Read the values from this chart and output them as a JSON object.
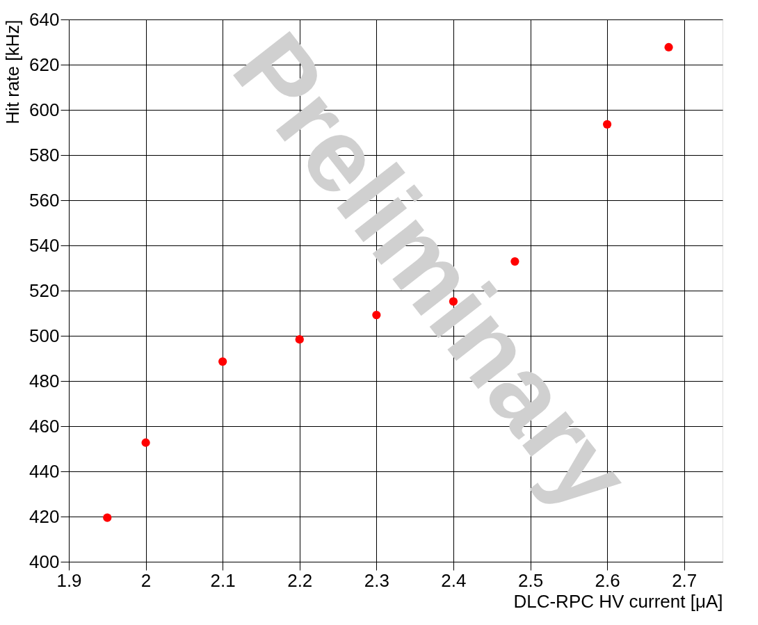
{
  "chart_data": {
    "type": "scatter",
    "xlabel": "DLC-RPC HV current [μA]",
    "ylabel": "Hit rate [kHz]",
    "x": [
      1.95,
      2.0,
      2.1,
      2.2,
      2.3,
      2.4,
      2.48,
      2.6,
      2.68
    ],
    "series": [
      {
        "color": "#ff0000",
        "values": [
          419.5,
          452.7,
          488.6,
          498.4,
          509.2,
          515.2,
          532.9,
          593.6,
          627.7
        ]
      }
    ],
    "xlim": [
      1.9,
      2.75
    ],
    "xticks": [
      1.9,
      2,
      2.1,
      2.2,
      2.3,
      2.4,
      2.5,
      2.6,
      2.7
    ],
    "ylim": [
      400,
      640
    ],
    "yticks": [
      400,
      420,
      440,
      460,
      480,
      500,
      520,
      540,
      560,
      580,
      600,
      620,
      640
    ],
    "grid": true,
    "marker": "circle",
    "legend": false,
    "annotations": [
      "Preliminary"
    ]
  }
}
